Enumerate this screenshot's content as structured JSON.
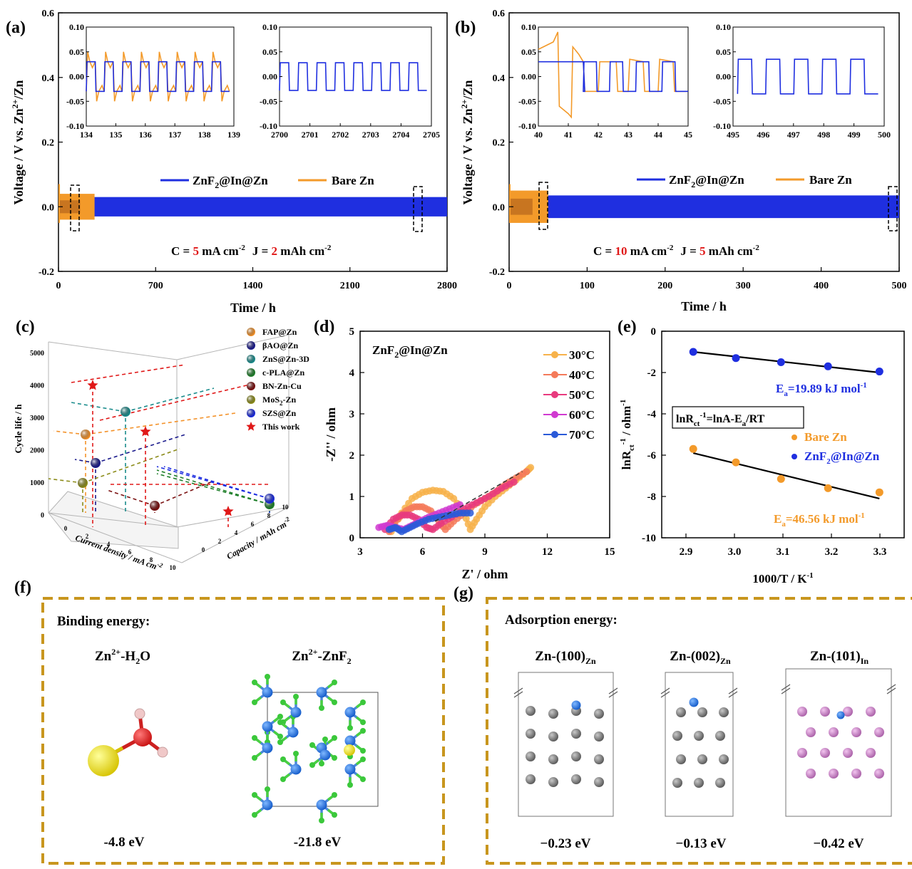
{
  "colors": {
    "blue": "#1f2fe0",
    "orange": "#f39a2a",
    "red": "#e01818",
    "gold": "#c8961e",
    "zn_gray": "#767676",
    "in_pink": "#c77bc4"
  },
  "panel_a": {
    "label": "(a)",
    "ylabel": "Voltage / V vs. Zn",
    "ylabel_sup": "2+",
    "ylabel_tail": "/Zn",
    "xlabel": "Time / h",
    "xticks": [
      "0",
      "700",
      "1400",
      "2100",
      "2800"
    ],
    "yticks": [
      "0.6",
      "0.4",
      "0.2",
      "0.0",
      "-0.2"
    ],
    "legend_blue_main": "ZnF",
    "legend_blue_sub": "2",
    "legend_blue_tail": "@In@Zn",
    "legend_orange": "Bare Zn",
    "cond_c": "C = ",
    "cond_c_val": "5",
    "cond_c_unit": " mA cm",
    "cond_c_exp": "-2",
    "cond_j": "J = ",
    "cond_j_val": "2",
    "cond_j_unit": " mAh cm",
    "cond_j_exp": "-2",
    "inset1_xticks": [
      "134",
      "135",
      "136",
      "137",
      "138",
      "139"
    ],
    "inset2_xticks": [
      "2700",
      "2701",
      "2702",
      "2703",
      "2704",
      "2705"
    ],
    "inset_yticks": [
      "0.10",
      "0.05",
      "0.00",
      "-0.05",
      "-0.10"
    ]
  },
  "panel_b": {
    "label": "(b)",
    "ylabel": "Voltage / V vs. Zn",
    "ylabel_sup": "2+",
    "ylabel_tail": "/Zn",
    "xlabel": "Time / h",
    "xticks": [
      "0",
      "100",
      "200",
      "300",
      "400",
      "500"
    ],
    "yticks": [
      "0.6",
      "0.4",
      "0.2",
      "0.0",
      "-0.2"
    ],
    "legend_blue_main": "ZnF",
    "legend_blue_sub": "2",
    "legend_blue_tail": "@In@Zn",
    "legend_orange": "Bare Zn",
    "cond_c": "C = ",
    "cond_c_val": "10",
    "cond_c_unit": " mA cm",
    "cond_c_exp": "-2",
    "cond_j": "J = ",
    "cond_j_val": "5",
    "cond_j_unit": " mAh cm",
    "cond_j_exp": "-2",
    "inset1_xticks": [
      "40",
      "41",
      "42",
      "43",
      "44",
      "45"
    ],
    "inset2_xticks": [
      "495",
      "496",
      "497",
      "498",
      "499",
      "500"
    ],
    "inset_yticks": [
      "0.10",
      "0.05",
      "0.00",
      "-0.05",
      "-0.10"
    ]
  },
  "panel_c": {
    "label": "(c)",
    "zlabel": "Cycle life / h",
    "xlabel": "Current density / mA cm",
    "xlabel_exp": "-2",
    "ylabel": "Capacity / mAh cm",
    "ylabel_exp": "-2",
    "zticks": [
      "5000",
      "4000",
      "3000",
      "2000",
      "1000",
      "0"
    ],
    "legend": [
      {
        "name": "FAP@Zn",
        "color": "#f3922a",
        "marker": "ball"
      },
      {
        "name": "βAO@Zn",
        "color": "#1a1a8c",
        "marker": "ball"
      },
      {
        "name": "ZnS@Zn-3D",
        "color": "#1a8c8c",
        "marker": "ball"
      },
      {
        "name": "c-PLA@Zn",
        "color": "#1f7f2a",
        "marker": "ball"
      },
      {
        "name": "BN-Zn-Cu",
        "color": "#7a1010",
        "marker": "ball"
      },
      {
        "name": "MoS",
        "name_sub": "2",
        "name_tail": "-Zn",
        "color": "#8c8c1a",
        "marker": "ball"
      },
      {
        "name": "SZS@Zn",
        "color": "#1a2ae0",
        "marker": "ball"
      },
      {
        "name": "This work",
        "color": "#e01818",
        "marker": "star"
      }
    ]
  },
  "panel_d": {
    "label": "(d)",
    "title_main": "ZnF",
    "title_sub": "2",
    "title_tail": "@In@Zn",
    "xlabel": "Z' / ohm",
    "ylabel": "-Z'' / ohm",
    "xticks": [
      "3",
      "6",
      "9",
      "12",
      "15"
    ],
    "yticks": [
      "5",
      "4",
      "3",
      "2",
      "1",
      "0"
    ],
    "series": [
      {
        "name": "30°C",
        "color": "#f7b24a"
      },
      {
        "name": "40°C",
        "color": "#f47a5a"
      },
      {
        "name": "50°C",
        "color": "#e83a7e"
      },
      {
        "name": "60°C",
        "color": "#d03ad0"
      },
      {
        "name": "70°C",
        "color": "#2a5ad8"
      }
    ]
  },
  "panel_e": {
    "label": "(e)",
    "xlabel": "1000/T / K",
    "xlabel_exp": "-1",
    "ylabel": "lnR",
    "ylabel_sub": "ct",
    "ylabel_exp": "-1",
    "ylabel_tail": " / ohm",
    "ylabel_tail_exp": "-1",
    "xticks": [
      "2.9",
      "3.0",
      "3.1",
      "3.2",
      "3.3"
    ],
    "yticks": [
      "0",
      "-2",
      "-4",
      "-6",
      "-8",
      "-10"
    ],
    "eq_main": "lnR",
    "eq_sub": "ct",
    "eq_exp": "-1",
    "eq_tail": "=lnA-E",
    "eq_sub2": "a",
    "eq_tail2": "/RT",
    "ea_blue_pre": "E",
    "ea_blue_sub": "a",
    "ea_blue_val": "=19.89 kJ mol",
    "ea_blue_exp": "-1",
    "ea_orange_pre": "E",
    "ea_orange_sub": "a",
    "ea_orange_val": "=46.56 kJ mol",
    "ea_orange_exp": "-1",
    "legend_orange": "Bare Zn",
    "legend_blue_main": "ZnF",
    "legend_blue_sub": "2",
    "legend_blue_tail": "@In@Zn"
  },
  "panel_f": {
    "label": "(f)",
    "heading": "Binding energy:",
    "m1_name": "Zn",
    "m1_sup": "2+",
    "m1_tail": "-H",
    "m1_sub": "2",
    "m1_tail2": "O",
    "m1_energy": "-4.8 eV",
    "m2_name": "Zn",
    "m2_sup": "2+",
    "m2_tail": "-ZnF",
    "m2_sub": "2",
    "m2_energy": "-21.8 eV"
  },
  "panel_g": {
    "label": "(g)",
    "heading": "Adsorption energy:",
    "s1_name": "Zn-(100)",
    "s1_sub": "Zn",
    "s1_energy": "−0.23 eV",
    "s2_name": "Zn-(002)",
    "s2_sub": "Zn",
    "s2_energy": "−0.13 eV",
    "s3_name": "Zn-(101)",
    "s3_sub": "In",
    "s3_energy": "−0.42 eV"
  },
  "chart_data": [
    {
      "type": "line",
      "panel": "a",
      "xlabel": "Time / h",
      "ylabel": "Voltage / V vs. Zn2+/Zn",
      "xlim": [
        0,
        2800
      ],
      "ylim": [
        -0.2,
        0.6
      ],
      "series": [
        {
          "name": "ZnF2@In@Zn",
          "x_range": [
            0,
            2800
          ],
          "voltage_amplitude": 0.03
        },
        {
          "name": "Bare Zn",
          "x_range": [
            0,
            260
          ],
          "voltage_amplitude": 0.04
        }
      ],
      "annotations": [
        "C = 5 mA cm-2",
        "J = 2 mAh cm-2"
      ]
    },
    {
      "type": "line",
      "panel": "b",
      "xlabel": "Time / h",
      "ylabel": "Voltage / V vs. Zn2+/Zn",
      "xlim": [
        0,
        500
      ],
      "ylim": [
        -0.2,
        0.6
      ],
      "series": [
        {
          "name": "ZnF2@In@Zn",
          "x_range": [
            0,
            500
          ],
          "voltage_amplitude": 0.035
        },
        {
          "name": "Bare Zn",
          "x_range": [
            0,
            50
          ],
          "voltage_amplitude": 0.05
        }
      ],
      "annotations": [
        "C = 10 mA cm-2",
        "J = 5 mAh cm-2"
      ]
    },
    {
      "type": "scatter",
      "panel": "c",
      "zlabel": "Cycle life / h",
      "points": [
        {
          "name": "FAP@Zn",
          "cycle_life": 2500
        },
        {
          "name": "βAO@Zn",
          "cycle_life": 1700
        },
        {
          "name": "ZnS@Zn-3D",
          "cycle_life": 3200
        },
        {
          "name": "c-PLA@Zn",
          "cycle_life": 400
        },
        {
          "name": "BN-Zn-Cu",
          "cycle_life": 400
        },
        {
          "name": "MoS2-Zn",
          "cycle_life": 1000
        },
        {
          "name": "SZS@Zn",
          "cycle_life": 450
        },
        {
          "name": "This work",
          "cycle_life": 4000
        },
        {
          "name": "This work",
          "cycle_life": 2600
        },
        {
          "name": "This work",
          "cycle_life": 1200
        }
      ]
    },
    {
      "type": "scatter",
      "panel": "d",
      "xlabel": "Z' / ohm",
      "ylabel": "-Z'' / ohm",
      "xlim": [
        3,
        15
      ],
      "ylim": [
        0,
        5
      ],
      "series": [
        {
          "name": "30°C",
          "x": [
            4.5,
            5.0,
            5.5,
            6.0,
            6.5,
            7.0,
            7.5,
            8.0,
            8.3,
            8.6,
            9.0,
            9.5,
            10.0,
            10.5,
            11.0,
            11.2
          ],
          "y": [
            0.15,
            0.6,
            0.95,
            1.1,
            1.15,
            1.12,
            0.95,
            0.6,
            0.2,
            0.45,
            0.75,
            1.0,
            1.2,
            1.4,
            1.6,
            1.7
          ]
        },
        {
          "name": "40°C",
          "x": [
            4.4,
            4.8,
            5.2,
            5.6,
            6.0,
            6.4,
            6.8,
            7.1,
            7.5,
            8.0,
            8.5,
            9.0,
            9.5,
            10.0,
            10.5,
            11.0
          ],
          "y": [
            0.15,
            0.45,
            0.65,
            0.75,
            0.75,
            0.65,
            0.4,
            0.2,
            0.4,
            0.6,
            0.8,
            0.95,
            1.1,
            1.3,
            1.45,
            1.6
          ]
        },
        {
          "name": "50°C",
          "x": [
            4.2,
            4.6,
            5.0,
            5.4,
            5.8,
            6.2,
            6.5,
            6.9,
            7.4,
            8.0,
            8.6,
            9.2,
            9.8,
            10.4
          ],
          "y": [
            0.2,
            0.45,
            0.55,
            0.55,
            0.45,
            0.25,
            0.2,
            0.35,
            0.5,
            0.7,
            0.85,
            1.0,
            1.2,
            1.35
          ]
        },
        {
          "name": "60°C",
          "x": [
            3.9,
            4.3,
            4.7,
            5.1,
            5.5,
            5.9,
            6.3,
            6.8,
            7.3,
            7.8
          ],
          "y": [
            0.25,
            0.3,
            0.25,
            0.2,
            0.3,
            0.4,
            0.5,
            0.6,
            0.7,
            0.8
          ]
        },
        {
          "name": "70°C",
          "x": [
            4.4,
            4.7,
            5.0,
            5.4,
            5.8,
            6.3,
            6.8,
            7.3,
            7.8,
            8.3
          ],
          "y": [
            0.2,
            0.25,
            0.15,
            0.25,
            0.35,
            0.45,
            0.5,
            0.55,
            0.6,
            0.6
          ]
        }
      ]
    },
    {
      "type": "scatter",
      "panel": "e",
      "xlabel": "1000/T / K-1",
      "ylabel": "lnRct-1 / ohm-1",
      "xlim": [
        2.85,
        3.35
      ],
      "ylim": [
        -10,
        0
      ],
      "series": [
        {
          "name": "ZnF2@In@Zn",
          "x": [
            2.915,
            3.003,
            3.096,
            3.193,
            3.299
          ],
          "y": [
            -1.0,
            -1.3,
            -1.5,
            -1.7,
            -1.95
          ],
          "fit": [
            [
              2.915,
              -1.0
            ],
            [
              3.299,
              -2.0
            ]
          ]
        },
        {
          "name": "Bare Zn",
          "x": [
            2.915,
            3.003,
            3.096,
            3.193,
            3.299
          ],
          "y": [
            -5.7,
            -6.35,
            -7.15,
            -7.6,
            -7.8
          ],
          "fit": [
            [
              2.915,
              -5.9
            ],
            [
              3.299,
              -8.1
            ]
          ]
        }
      ]
    }
  ]
}
